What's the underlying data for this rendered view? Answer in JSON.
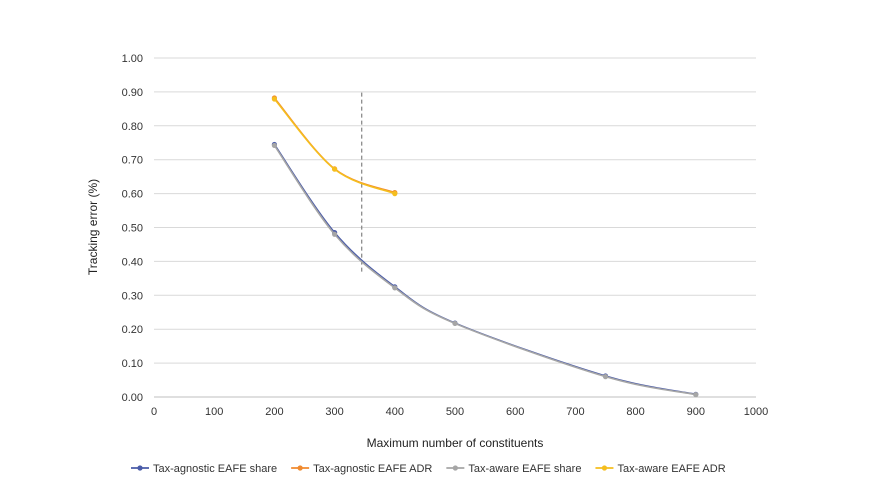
{
  "chart_data": {
    "type": "line",
    "xlabel": "Maximum number of constituents",
    "ylabel": "Tracking error  (%)",
    "xlim": [
      0,
      1000
    ],
    "ylim": [
      0,
      1
    ],
    "x_ticks": [
      "0",
      "100",
      "200",
      "300",
      "400",
      "500",
      "600",
      "700",
      "800",
      "900",
      "1000"
    ],
    "y_ticks": [
      "0.00",
      "0.10",
      "0.20",
      "0.30",
      "0.40",
      "0.50",
      "0.60",
      "0.70",
      "0.80",
      "0.90",
      "1.00"
    ],
    "grid": "horizontal",
    "legend_position": "bottom",
    "reference_line": {
      "x": 345,
      "y_range": [
        0.37,
        0.9
      ],
      "style": "dashed"
    },
    "series": [
      {
        "name": "Tax-agnostic EAFE share",
        "color": "#4A5BA8",
        "x": [
          200,
          300,
          400,
          500,
          750,
          900
        ],
        "y": [
          0.745,
          0.485,
          0.325,
          0.218,
          0.062,
          0.008
        ]
      },
      {
        "name": "Tax-agnostic EAFE ADR",
        "color": "#F08A2E",
        "x": [
          200,
          300,
          400
        ],
        "y": [
          0.882,
          0.673,
          0.603
        ]
      },
      {
        "name": "Tax-aware EAFE share",
        "color": "#A6A6A6",
        "x": [
          200,
          300,
          400,
          500,
          750,
          900
        ],
        "y": [
          0.742,
          0.48,
          0.322,
          0.217,
          0.06,
          0.007
        ]
      },
      {
        "name": "Tax-aware EAFE ADR",
        "color": "#F5BE1E",
        "x": [
          200,
          300,
          400
        ],
        "y": [
          0.879,
          0.672,
          0.6
        ]
      }
    ]
  }
}
